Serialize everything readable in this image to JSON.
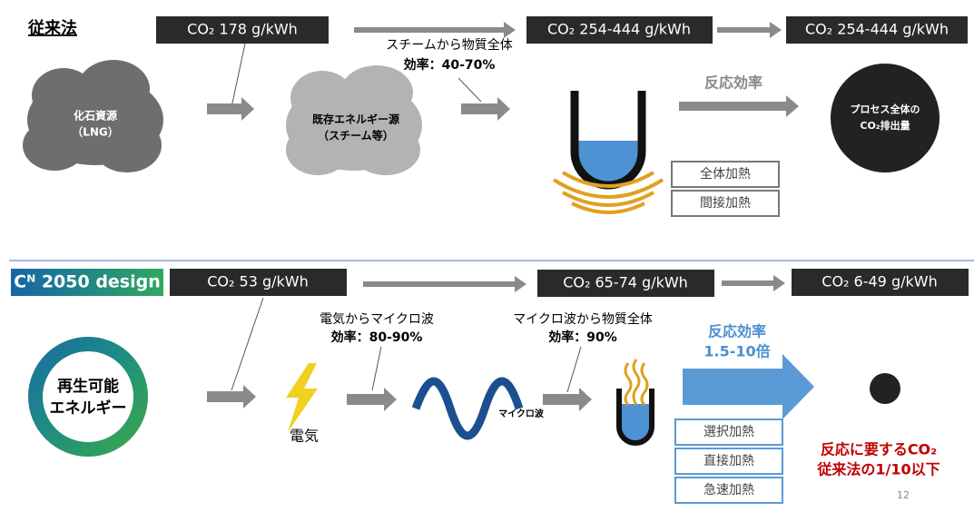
{
  "conventional": {
    "heading": "従来法",
    "emissions": [
      "CO₂ 178 g/kWh",
      "CO₂ 254-444 g/kWh",
      "CO₂ 254-444 g/kWh"
    ],
    "transfer": {
      "label": "スチームから物質全体",
      "efficiency": "効率：40-70%"
    },
    "source": [
      "化石資源",
      "（LNG）"
    ],
    "existing": [
      "既存エネルギー源",
      "（スチーム等）"
    ],
    "reaction": "反応効率",
    "result": [
      "プロセス全体の",
      "CO₂排出量"
    ],
    "heating": [
      "全体加熱",
      "間接加熱"
    ]
  },
  "proposed": {
    "badge": "Cᴺ 2050 design",
    "emissions": [
      "CO₂ 53 g/kWh",
      "CO₂  65-74 g/kWh",
      "CO₂  6-49 g/kWh"
    ],
    "conversion": {
      "label": "電気からマイクロ波",
      "efficiency": "効率：80-90%"
    },
    "transfer": {
      "label": "マイクロ波から物質全体",
      "efficiency": "効率：90%"
    },
    "source": [
      "再生可能",
      "エネルギー"
    ],
    "electricity": "電気",
    "microwave": "マイクロ波",
    "reaction": [
      "反応効率",
      "1.5-10倍"
    ],
    "heating": [
      "選択加熱",
      "直接加熱",
      "急速加熱"
    ],
    "result": [
      "反応に要するCO₂",
      "従来法の1/10以下"
    ]
  },
  "page_number": "12"
}
